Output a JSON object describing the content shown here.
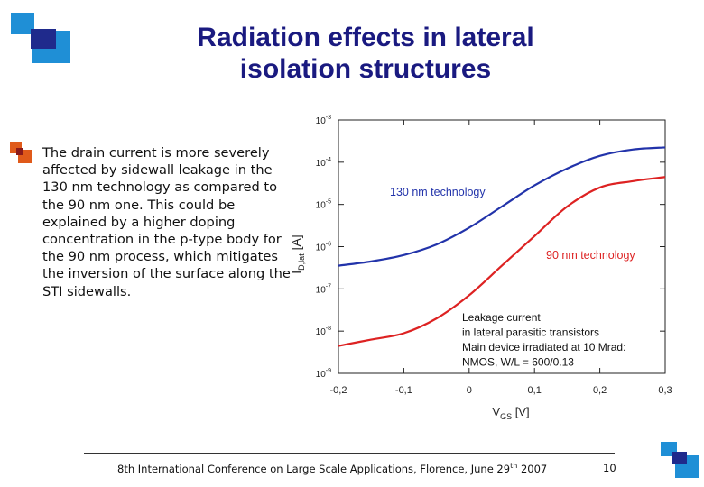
{
  "slide": {
    "title_line1": "Radiation effects in lateral",
    "title_line2": "isolation structures",
    "body_text": "The drain current is more severely affected by sidewall leakage in the 130 nm technology as compared to the 90 nm one. This could be explained by a higher doping concentration in the p-type body for the 90 nm process, which mitigates the inversion of the surface along the STI sidewalls.",
    "footer_text": "8th International Conference on Large Scale Applications, Florence, June 29",
    "footer_superscript": "th",
    "footer_year": "2007",
    "page_number": "10",
    "colors": {
      "title": "#1a1a80",
      "logo_dark": "#1f2a8c",
      "logo_light": "#1f8fd6",
      "bullet_orange": "#e05a1a",
      "bullet_dark": "#8b1a1a"
    }
  },
  "chart_data": {
    "type": "line",
    "xlabel": "V",
    "xlabel_subscript": "GS",
    "xlabel_unit": "[V]",
    "ylabel": "I",
    "ylabel_subscript": "D,lat",
    "ylabel_unit": "[A]",
    "xlim": [
      -0.2,
      0.3
    ],
    "ylim_log10": [
      -9,
      -3
    ],
    "x_ticks": [
      {
        "value": -0.2,
        "label": "-0,2"
      },
      {
        "value": -0.1,
        "label": "-0,1"
      },
      {
        "value": 0,
        "label": "0"
      },
      {
        "value": 0.1,
        "label": "0,1"
      },
      {
        "value": 0.2,
        "label": "0,2"
      },
      {
        "value": 0.3,
        "label": "0,3"
      }
    ],
    "y_ticks": [
      {
        "exp": -3,
        "base": "10",
        "sup": "-3"
      },
      {
        "exp": -4,
        "base": "10",
        "sup": "-4"
      },
      {
        "exp": -5,
        "base": "10",
        "sup": "-5"
      },
      {
        "exp": -6,
        "base": "10",
        "sup": "-6"
      },
      {
        "exp": -7,
        "base": "10",
        "sup": "-7"
      },
      {
        "exp": -8,
        "base": "10",
        "sup": "-8"
      },
      {
        "exp": -9,
        "base": "10",
        "sup": "-9"
      }
    ],
    "series": [
      {
        "name": "130 nm technology",
        "color": "#2233aa",
        "x": [
          -0.2,
          -0.15,
          -0.1,
          -0.05,
          0,
          0.05,
          0.1,
          0.15,
          0.2,
          0.25,
          0.3
        ],
        "log10_y": [
          -6.45,
          -6.35,
          -6.2,
          -5.95,
          -5.55,
          -5.05,
          -4.55,
          -4.15,
          -3.85,
          -3.7,
          -3.65
        ]
      },
      {
        "name": "90 nm technology",
        "color": "#dd2222",
        "x": [
          -0.2,
          -0.15,
          -0.1,
          -0.05,
          0,
          0.05,
          0.1,
          0.15,
          0.2,
          0.25,
          0.3
        ],
        "log10_y": [
          -8.35,
          -8.2,
          -8.05,
          -7.7,
          -7.15,
          -6.45,
          -5.75,
          -5.05,
          -4.6,
          -4.45,
          -4.35
        ]
      }
    ],
    "annotations": [
      "Leakage current",
      "in lateral parasitic transistors",
      "Main device irradiated at 10 Mrad:",
      "NMOS, W/L = 600/0.13"
    ]
  }
}
